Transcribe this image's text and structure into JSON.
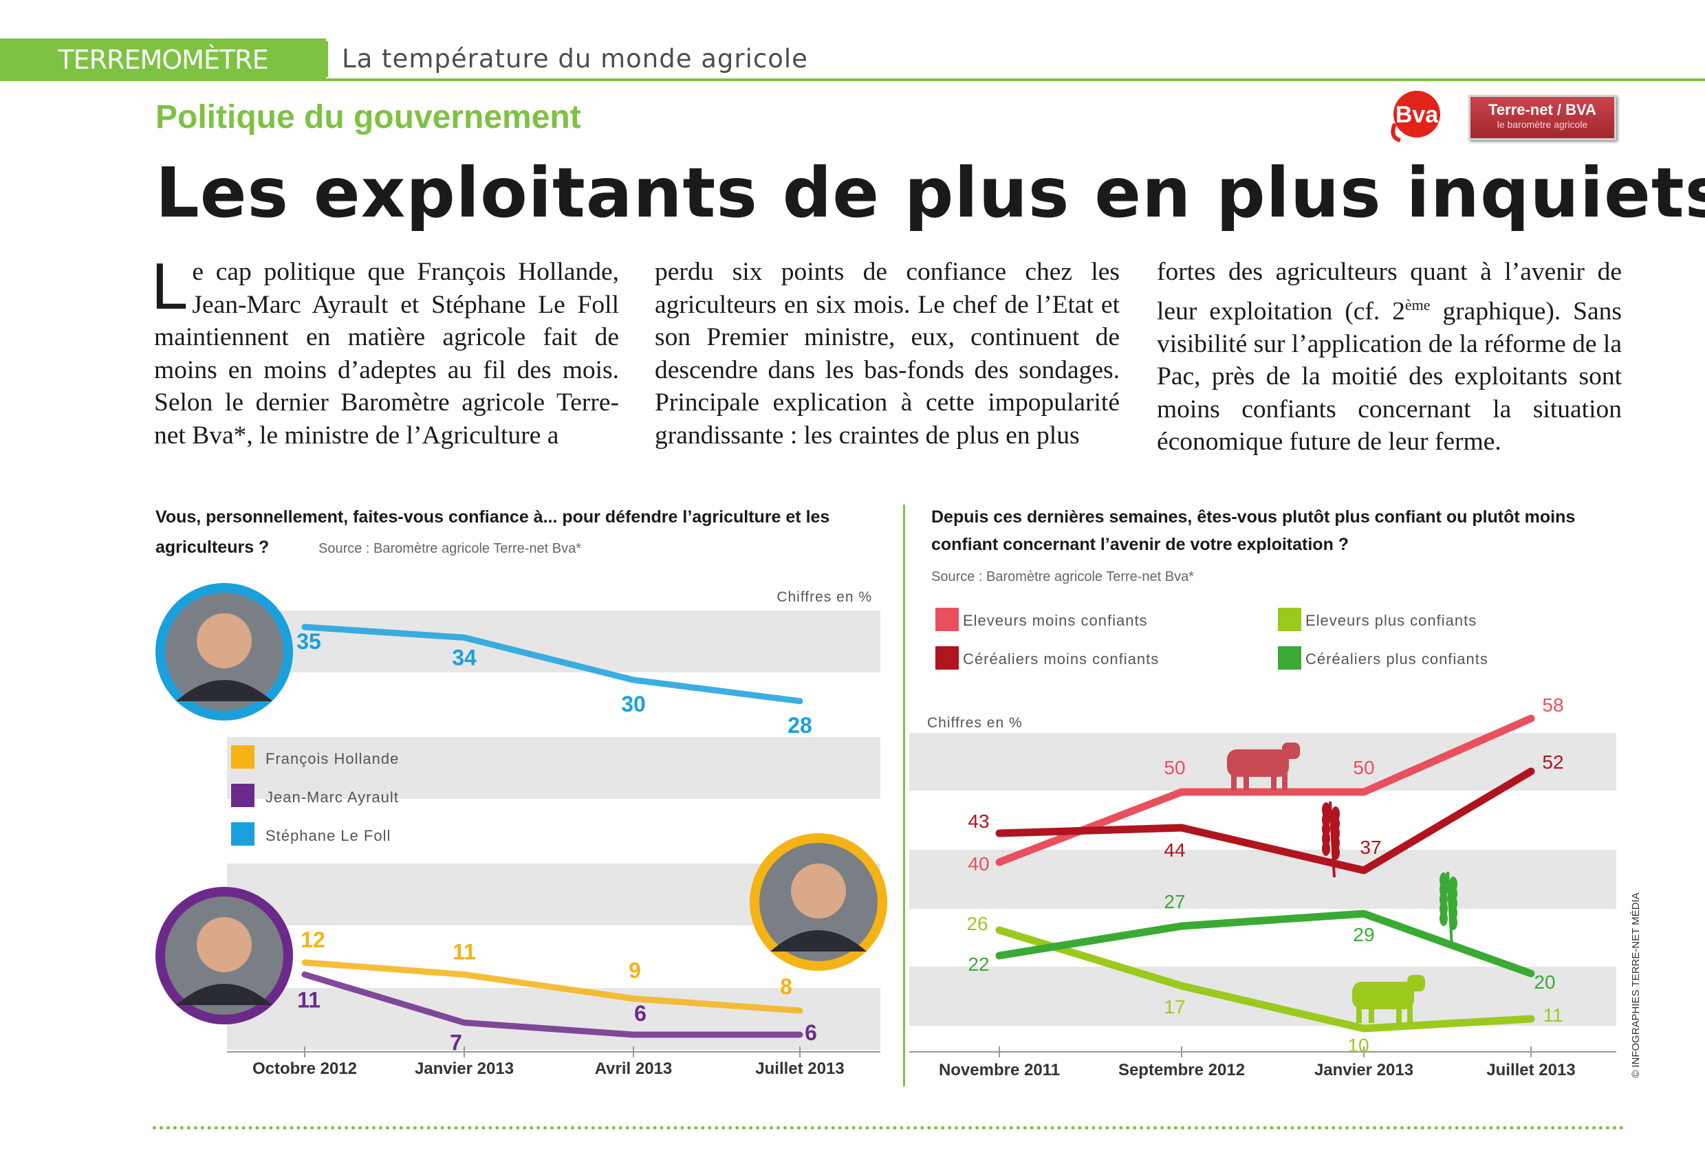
{
  "header": {
    "brand": "TERREMOMÈTRE",
    "tagline": "La température du monde agricole",
    "kicker": "Politique du gouvernement",
    "headline": "Les exploitants de plus en plus inquiets"
  },
  "logos": {
    "bva": "Bva",
    "terrenet_line1": "Terre-net / BVA",
    "terrenet_line2": "le baromètre agricole"
  },
  "article": {
    "dropcap": "L",
    "col1_rest": "e cap politique que François Hollande, Jean-Marc Ayrault et Stéphane Le Foll maintiennent en matière agricole fait de moins en moins d’adeptes au fil des mois. Selon le dernier Baromètre agricole Terre-net Bva*, le ministre de l’Agriculture a",
    "col2": "perdu six points de confiance chez les agriculteurs en six mois. Le chef de l’Etat et son Premier ministre, eux, continuent de descendre dans les bas-fonds des sondages. Principale explication à cette impopularité grandissante : les craintes de plus en plus",
    "col3_a": "fortes des agriculteurs quant à l’avenir de leur exploitation (cf. 2",
    "col3_sup": "ème",
    "col3_b": " graphique). Sans visibilité sur l’application de la réforme de la Pac, près de la moitié des exploitants sont moins confiants concernant la situation économique future de leur ferme."
  },
  "credit": "© INFOGRAPHIES TERRE-NET MÉDIA",
  "chart_data": [
    {
      "type": "line",
      "title": "Vous, personnellement, faites-vous confiance à... pour défendre l’agriculture et les agriculteurs ?",
      "source": "Source : Baromètre agricole Terre-net Bva*",
      "unit_note": "Chiffres en %",
      "categories": [
        "Octobre 2012",
        "Janvier 2013",
        "Avril 2013",
        "Juillet 2013"
      ],
      "series": [
        {
          "name": "François Hollande",
          "color": "#f5b315",
          "values": [
            12,
            11,
            9,
            8
          ]
        },
        {
          "name": "Jean-Marc Ayrault",
          "color": "#6b2a8a",
          "values": [
            11,
            7,
            6,
            6
          ]
        },
        {
          "name": "Stéphane Le Foll",
          "color": "#1aa0dc",
          "values": [
            35,
            34,
            30,
            28
          ]
        }
      ],
      "ylim": [
        5,
        36
      ],
      "grid": "banded",
      "legend_position": "left"
    },
    {
      "type": "line",
      "title": "Depuis ces dernières semaines, êtes-vous plutôt plus confiant ou plutôt moins confiant concernant l’avenir de votre exploitation ?",
      "source": "Source : Baromètre agricole Terre-net Bva*",
      "unit_note": "Chiffres en %",
      "categories": [
        "Novembre 2011",
        "Septembre 2012",
        "Janvier 2013",
        "Juillet 2013"
      ],
      "series": [
        {
          "name": "Eleveurs moins confiants",
          "color": "#e8505e",
          "values": [
            40,
            50,
            50,
            58
          ]
        },
        {
          "name": "Céréaliers moins confiants",
          "color": "#b0141e",
          "values": [
            43,
            44,
            37,
            52
          ]
        },
        {
          "name": "Eleveurs plus confiants",
          "color": "#9cc91e",
          "values": [
            26,
            17,
            10,
            11
          ]
        },
        {
          "name": "Céréaliers plus confiants",
          "color": "#3aaa35",
          "values": [
            22,
            27,
            29,
            20
          ]
        }
      ],
      "ylim": [
        6,
        60
      ],
      "grid": "banded",
      "legend_position": "top"
    }
  ]
}
